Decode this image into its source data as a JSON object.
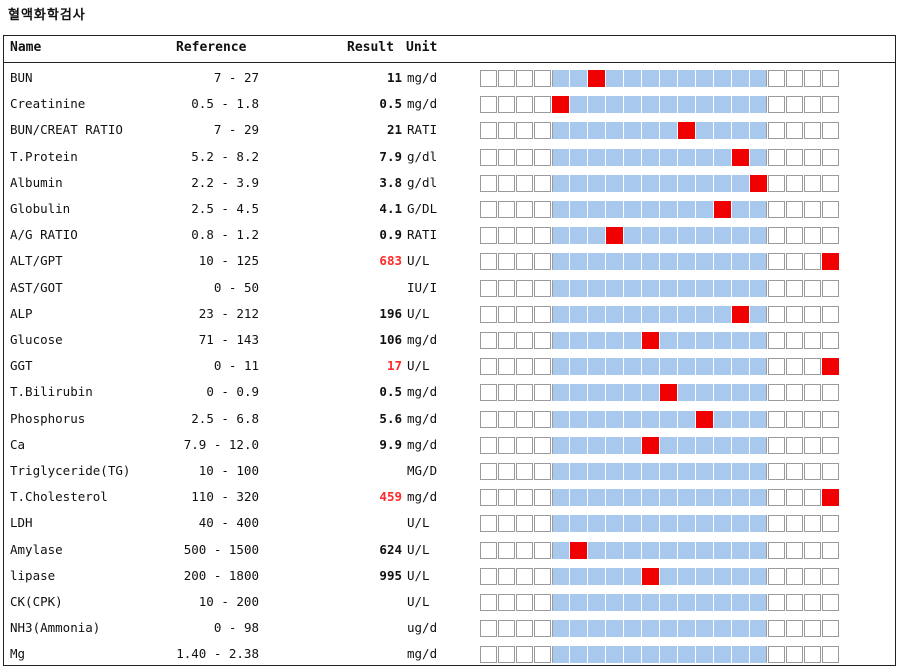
{
  "title": "혈액화학검사",
  "header": {
    "name": "Name",
    "reference": "Reference",
    "result": "Result",
    "unit": "Unit"
  },
  "colors": {
    "normal_range": "#a9c8ee",
    "marker": "#f00000",
    "high_result": "#ff2a2a"
  },
  "bar_cells": 20,
  "normal_start": 4,
  "normal_end": 15,
  "rows": [
    {
      "name": "BUN",
      "reference": "7 - 27",
      "result": "11",
      "unit": "mg/d",
      "high": false,
      "pos": 6
    },
    {
      "name": "Creatinine",
      "reference": "0.5 - 1.8",
      "result": "0.5",
      "unit": "mg/d",
      "high": false,
      "pos": 4
    },
    {
      "name": "BUN/CREAT RATIO",
      "reference": "7 - 29",
      "result": "21",
      "unit": "RATI",
      "high": false,
      "pos": 11
    },
    {
      "name": "T.Protein",
      "reference": "5.2 - 8.2",
      "result": "7.9",
      "unit": "g/dl",
      "high": false,
      "pos": 14
    },
    {
      "name": "Albumin",
      "reference": "2.2 - 3.9",
      "result": "3.8",
      "unit": "g/dl",
      "high": false,
      "pos": 15
    },
    {
      "name": "Globulin",
      "reference": "2.5 - 4.5",
      "result": "4.1",
      "unit": "G/DL",
      "high": false,
      "pos": 13
    },
    {
      "name": "A/G RATIO",
      "reference": "0.8 - 1.2",
      "result": "0.9",
      "unit": "RATI",
      "high": false,
      "pos": 7
    },
    {
      "name": "ALT/GPT",
      "reference": "10 - 125",
      "result": "683",
      "unit": "U/L",
      "high": true,
      "pos": 19
    },
    {
      "name": "AST/GOT",
      "reference": "0 - 50",
      "result": "",
      "unit": "IU/I",
      "high": false,
      "pos": null
    },
    {
      "name": "ALP",
      "reference": "23 - 212",
      "result": "196",
      "unit": "U/L",
      "high": false,
      "pos": 14
    },
    {
      "name": "Glucose",
      "reference": "71 - 143",
      "result": "106",
      "unit": "mg/d",
      "high": false,
      "pos": 9
    },
    {
      "name": "GGT",
      "reference": "0 - 11",
      "result": "17",
      "unit": "U/L",
      "high": true,
      "pos": 19
    },
    {
      "name": "T.Bilirubin",
      "reference": "0 - 0.9",
      "result": "0.5",
      "unit": "mg/d",
      "high": false,
      "pos": 10
    },
    {
      "name": "Phosphorus",
      "reference": "2.5 - 6.8",
      "result": "5.6",
      "unit": "mg/d",
      "high": false,
      "pos": 12
    },
    {
      "name": "Ca",
      "reference": "7.9 - 12.0",
      "result": "9.9",
      "unit": "mg/d",
      "high": false,
      "pos": 9
    },
    {
      "name": "Triglyceride(TG)",
      "reference": "10 - 100",
      "result": "",
      "unit": "MG/D",
      "high": false,
      "pos": null
    },
    {
      "name": "T.Cholesterol",
      "reference": "110 - 320",
      "result": "459",
      "unit": "mg/d",
      "high": true,
      "pos": 19
    },
    {
      "name": "LDH",
      "reference": "40 - 400",
      "result": "",
      "unit": "U/L",
      "high": false,
      "pos": null
    },
    {
      "name": "Amylase",
      "reference": "500 - 1500",
      "result": "624",
      "unit": "U/L",
      "high": false,
      "pos": 5
    },
    {
      "name": "lipase",
      "reference": "200 - 1800",
      "result": "995",
      "unit": "U/L",
      "high": false,
      "pos": 9
    },
    {
      "name": "CK(CPK)",
      "reference": "10 - 200",
      "result": "",
      "unit": "U/L",
      "high": false,
      "pos": null
    },
    {
      "name": "NH3(Ammonia)",
      "reference": "0 - 98",
      "result": "",
      "unit": "ug/d",
      "high": false,
      "pos": null
    },
    {
      "name": "Mg",
      "reference": "1.40 - 2.38",
      "result": "",
      "unit": "mg/d",
      "high": false,
      "pos": null
    }
  ]
}
